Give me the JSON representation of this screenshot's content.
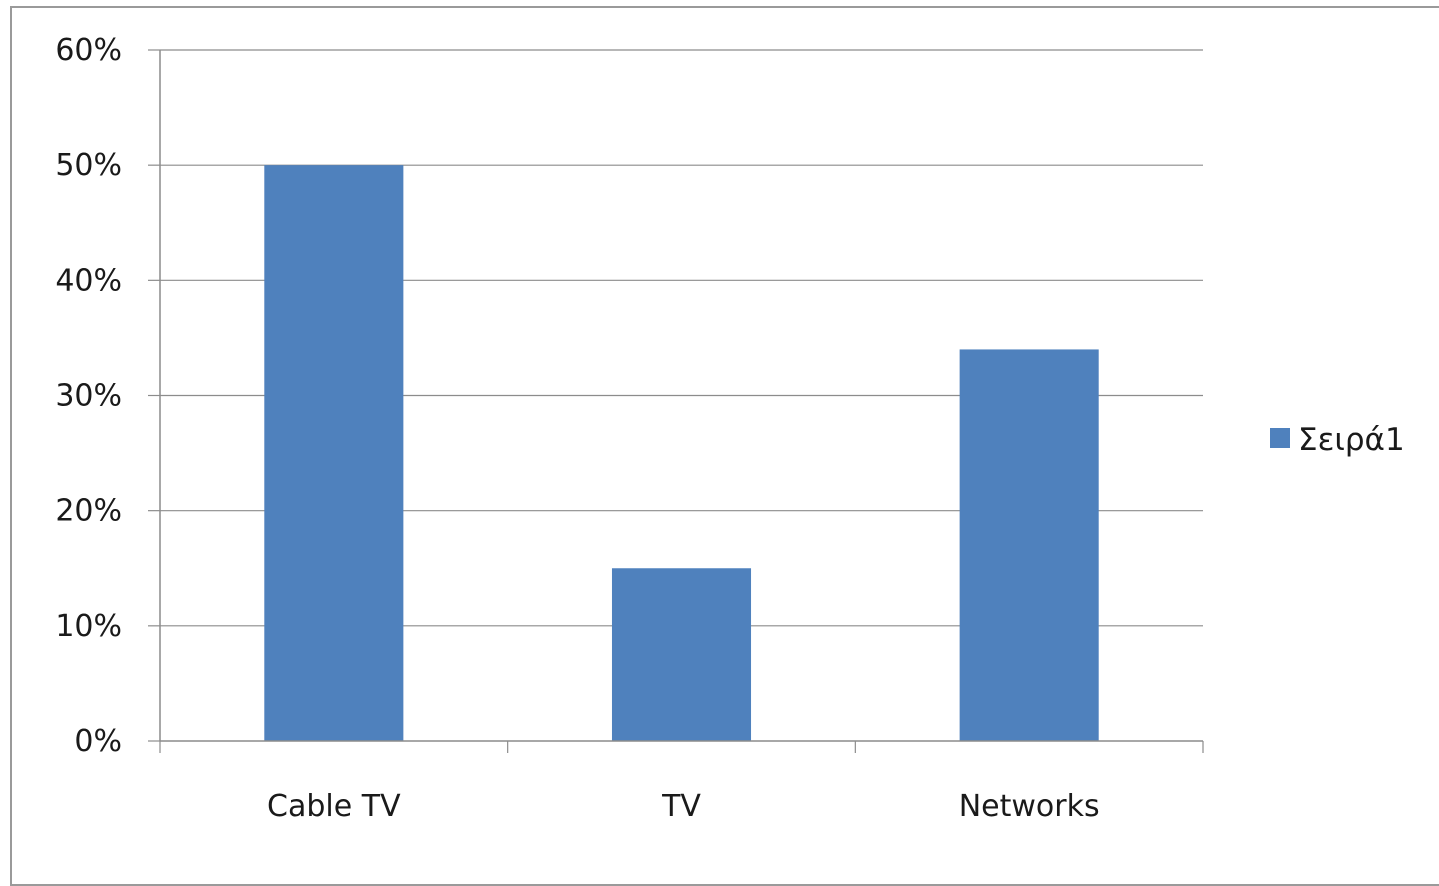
{
  "chart_data": {
    "type": "bar",
    "categories": [
      "Cable TV",
      "TV",
      "Networks"
    ],
    "series": [
      {
        "name": "Σειρά1",
        "values": [
          0.5,
          0.15,
          0.34
        ]
      }
    ],
    "y_tick_labels": [
      "0%",
      "10%",
      "20%",
      "30%",
      "40%",
      "50%",
      "60%"
    ],
    "ylim": [
      0,
      0.6
    ],
    "grid": true,
    "legend_position": "right",
    "colors": {
      "bar": "#4f81bd",
      "grid": "#8c8c8c",
      "axis": "#8c8c8c",
      "frame": "#9a9a9a"
    }
  }
}
